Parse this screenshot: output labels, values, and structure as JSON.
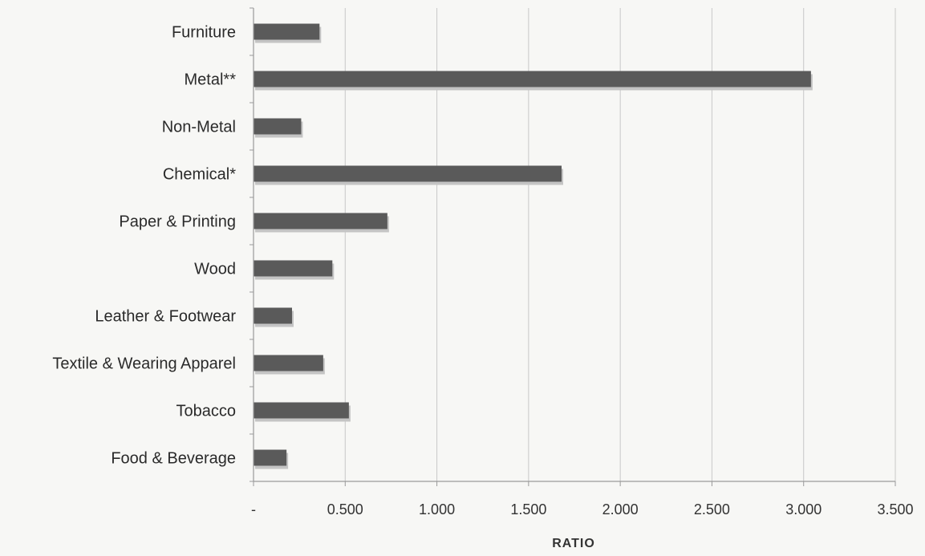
{
  "chart_data": {
    "type": "bar",
    "orientation": "horizontal",
    "categories": [
      "Furniture",
      "Metal**",
      "Non-Metal",
      "Chemical*",
      "Paper & Printing",
      "Wood",
      "Leather & Footwear",
      "Textile & Wearing Apparel",
      "Tobacco",
      "Food & Beverage"
    ],
    "values": [
      0.36,
      3.04,
      0.26,
      1.68,
      0.73,
      0.43,
      0.21,
      0.38,
      0.52,
      0.18
    ],
    "xlabel": "RATIO",
    "ylabel": "",
    "xlim": [
      0,
      3.5
    ],
    "xticks": [
      0,
      0.5,
      1,
      1.5,
      2,
      2.5,
      3,
      3.5
    ],
    "xtick_labels": [
      "-",
      "0.500",
      "1.000",
      "1.500",
      "2.000",
      "2.500",
      "3.000",
      "3.500"
    ],
    "grid": "vertical",
    "legend": "none",
    "colors": {
      "bar": "#5a5a5a",
      "bar_shadow": "#c4c4c4",
      "grid": "#c8c8c8",
      "axis": "#9a9a9a"
    }
  }
}
